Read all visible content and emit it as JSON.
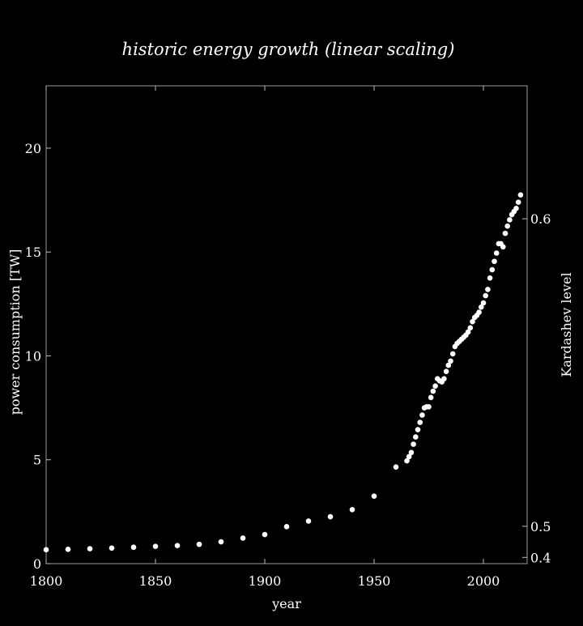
{
  "colors": {
    "background": "#000000",
    "marker": "#ffffff",
    "frame": "#9a9a9a",
    "text": "#ffffff"
  },
  "chart_data": {
    "type": "scatter",
    "title": "historic energy growth (linear scaling)",
    "xlabel": "year",
    "ylabel": "power consumption [TW]",
    "y2label": "Kardashev level",
    "xlim": [
      1800,
      2020
    ],
    "ylim": [
      0,
      23
    ],
    "grid": false,
    "x_ticks": [
      1800,
      1850,
      1900,
      1950,
      2000
    ],
    "x_tick_labels": [
      "1800",
      "1850",
      "1900",
      "1950",
      "2000"
    ],
    "y_ticks": [
      0,
      5,
      10,
      15,
      20
    ],
    "y_tick_labels": [
      "0",
      "5",
      "10",
      "15",
      "20"
    ],
    "y2_ticks": [
      {
        "position_tw": 0.3,
        "label": "0.4"
      },
      {
        "position_tw": 1.8,
        "label": "0.5"
      },
      {
        "position_tw": 16.6,
        "label": "0.6"
      }
    ],
    "series": [
      {
        "name": "power consumption",
        "x": [
          1800,
          1810,
          1820,
          1830,
          1840,
          1850,
          1860,
          1870,
          1880,
          1890,
          1900,
          1910,
          1920,
          1930,
          1940,
          1950,
          1960,
          1965,
          1966,
          1967,
          1968,
          1969,
          1970,
          1971,
          1972,
          1973,
          1974,
          1975,
          1976,
          1977,
          1978,
          1979,
          1980,
          1981,
          1982,
          1983,
          1984,
          1985,
          1986,
          1987,
          1988,
          1989,
          1990,
          1991,
          1992,
          1993,
          1994,
          1995,
          1996,
          1997,
          1998,
          1999,
          2000,
          2001,
          2002,
          2003,
          2004,
          2005,
          2006,
          2007,
          2008,
          2009,
          2010,
          2011,
          2012,
          2013,
          2014,
          2015,
          2016,
          2017
        ],
        "y": [
          0.67,
          0.69,
          0.72,
          0.75,
          0.79,
          0.83,
          0.87,
          0.93,
          1.05,
          1.23,
          1.4,
          1.78,
          2.05,
          2.26,
          2.6,
          3.25,
          4.65,
          4.95,
          5.15,
          5.35,
          5.75,
          6.1,
          6.45,
          6.8,
          7.15,
          7.5,
          7.55,
          7.55,
          8.0,
          8.3,
          8.55,
          8.9,
          8.8,
          8.75,
          8.9,
          9.25,
          9.55,
          9.75,
          10.1,
          10.45,
          10.6,
          10.7,
          10.8,
          10.9,
          11.0,
          11.15,
          11.35,
          11.65,
          11.85,
          11.95,
          12.1,
          12.35,
          12.55,
          12.9,
          13.2,
          13.75,
          14.15,
          14.55,
          14.95,
          15.4,
          15.4,
          15.25,
          15.9,
          16.25,
          16.55,
          16.8,
          16.95,
          17.1,
          17.4,
          17.75
        ]
      }
    ]
  }
}
